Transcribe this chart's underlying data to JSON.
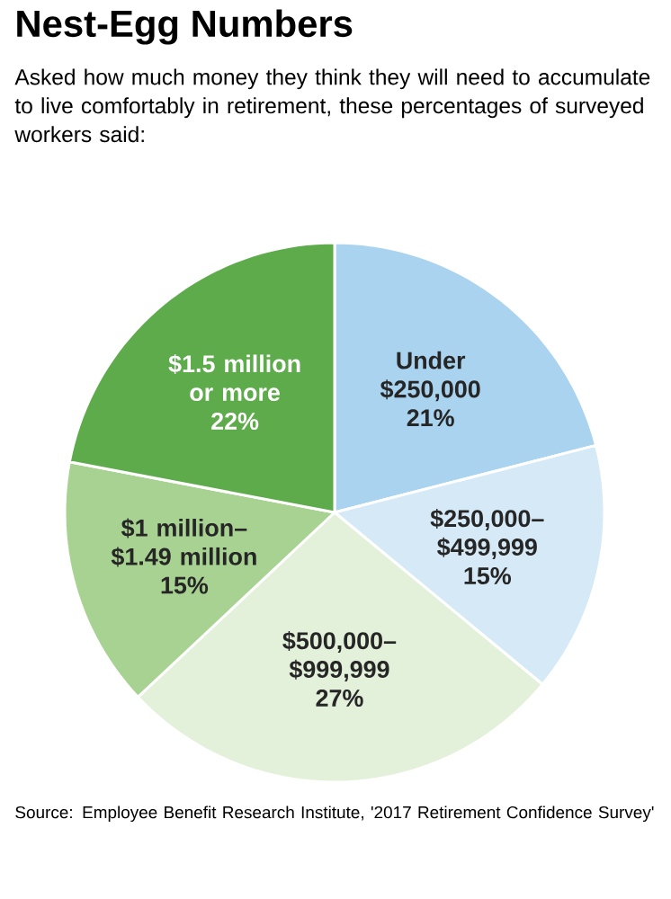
{
  "chart_data": {
    "type": "pie",
    "title": "Nest-Egg Numbers",
    "subtitle": "Asked how much money they think they will need to accumulate to live comfortably in retirement, these percentages of surveyed workers said:",
    "categories": [
      "Under $250,000",
      "$250,000–$499,999",
      "$500,000–$999,999",
      "$1 million–$1.49 million",
      "$1.5 million or more"
    ],
    "values": [
      21,
      15,
      27,
      15,
      22
    ],
    "value_labels": [
      "21%",
      "15%",
      "27%",
      "15%",
      "22%"
    ],
    "colors": [
      "#a9d3ef",
      "#d5e9f7",
      "#e3f0da",
      "#a8d292",
      "#5eab4c"
    ],
    "annotations": [
      "Source: Employee Benefit Research Institute, '2017 Retirement Confidence Survey'"
    ]
  }
}
